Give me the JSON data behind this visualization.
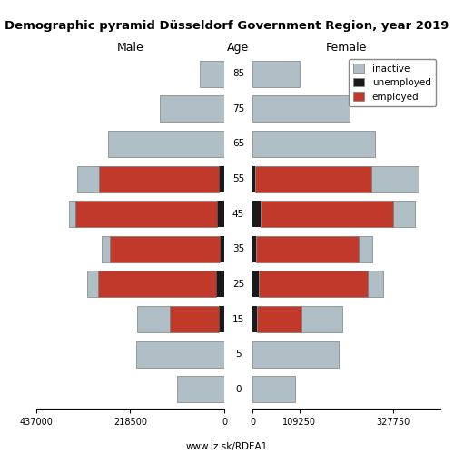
{
  "title": "Demographic pyramid Düsseldorf Government Region, year 2019",
  "subtitle": "www.iz.sk/RDEA1",
  "age_labels": [
    "0",
    "5",
    "15",
    "25",
    "35",
    "45",
    "55",
    "65",
    "75",
    "85"
  ],
  "male_inactive": [
    110000,
    205000,
    75000,
    25000,
    20000,
    15000,
    50000,
    270000,
    150000,
    58000
  ],
  "male_unemployed": [
    0,
    0,
    12000,
    18000,
    10000,
    16000,
    12000,
    0,
    0,
    0
  ],
  "male_employed": [
    0,
    0,
    115000,
    275000,
    255000,
    330000,
    280000,
    0,
    0,
    0
  ],
  "female_inactive": [
    100000,
    200000,
    95000,
    35000,
    30000,
    50000,
    110000,
    285000,
    225000,
    110000
  ],
  "female_unemployed": [
    0,
    0,
    10000,
    14000,
    8000,
    18000,
    6000,
    0,
    0,
    0
  ],
  "female_employed": [
    0,
    0,
    105000,
    255000,
    240000,
    310000,
    270000,
    0,
    0,
    0
  ],
  "colors": {
    "inactive": "#b0bec5",
    "unemployed": "#1a1a1a",
    "employed": "#c0392b"
  },
  "male_xlim": 437000,
  "female_xlim": 437000,
  "male_xticks": [
    -437000,
    -218500,
    0
  ],
  "male_xtick_labels": [
    "437000",
    "218500",
    "0"
  ],
  "female_xticks": [
    0,
    109250,
    327750
  ],
  "female_xtick_labels": [
    "0",
    "109250",
    "327750"
  ],
  "bar_height": 0.75
}
